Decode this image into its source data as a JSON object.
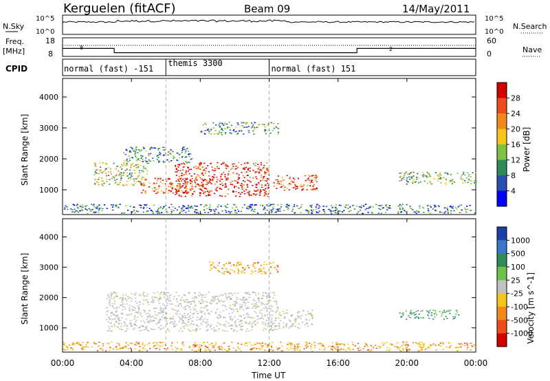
{
  "header": {
    "station": "Kerguelen (fitACF)",
    "beam": "Beam 09",
    "date": "14/May/2011"
  },
  "strip_labels": {
    "nsky": "N.Sky",
    "nsky_ticks": [
      "10^5",
      "10^0"
    ],
    "nsearch": "N.Search",
    "nsearch_ticks": [
      "10^5",
      "10^0"
    ],
    "freq": "Freq.",
    "freq_unit": "[MHz]",
    "freq_ticks": [
      "18",
      "8"
    ],
    "nave": "Nave",
    "nave_ticks": [
      "60",
      "0"
    ],
    "cpid": "CPID"
  },
  "cpid_segments": [
    {
      "label": "normal (fast) -151",
      "start_h": 0,
      "end_h": 6
    },
    {
      "label": "themis 3300",
      "start_h": 6,
      "end_h": 12
    },
    {
      "label": "normal (fast) 151",
      "start_h": 12,
      "end_h": 24
    }
  ],
  "freq_annotations": [
    "8",
    "2"
  ],
  "chart_data": [
    {
      "type": "heatmap",
      "quantity": "Power",
      "xlabel": "Time UT",
      "ylabel": "Slant Range [km]",
      "xlim_hours": [
        0,
        24
      ],
      "ylim_km": [
        200,
        4600
      ],
      "y_ticks": [
        1000,
        2000,
        3000,
        4000
      ],
      "x_tick_labels": [
        "00:00",
        "04:00",
        "08:00",
        "12:00",
        "16:00",
        "20:00",
        "00:00"
      ],
      "colorbar": {
        "title": "Power [dB]",
        "ticks": [
          "4",
          "8",
          "12",
          "16",
          "20",
          "24",
          "28"
        ],
        "range": [
          0,
          30
        ],
        "colors": [
          "#0000ff",
          "#2b4fb0",
          "#2e8b57",
          "#7fc241",
          "#f5c518",
          "#f08a1c",
          "#ef4b1c",
          "#d40000"
        ]
      },
      "regions": [
        {
          "t": [
            1.8,
            5.0
          ],
          "r": [
            1150,
            1900
          ],
          "level": 14
        },
        {
          "t": [
            4.5,
            8.5
          ],
          "r": [
            900,
            1400
          ],
          "level": 24
        },
        {
          "t": [
            6.5,
            12.0
          ],
          "r": [
            800,
            1900
          ],
          "level": 27
        },
        {
          "t": [
            12.2,
            14.8
          ],
          "r": [
            1000,
            1500
          ],
          "level": 24
        },
        {
          "t": [
            3.5,
            7.5
          ],
          "r": [
            1900,
            2400
          ],
          "level": 9
        },
        {
          "t": [
            8.0,
            12.5
          ],
          "r": [
            2800,
            3200
          ],
          "level": 10
        },
        {
          "t": [
            19.5,
            24.0
          ],
          "r": [
            1200,
            1600
          ],
          "level": 12
        },
        {
          "t": [
            0.0,
            24.0
          ],
          "r": [
            250,
            550
          ],
          "level": 8
        }
      ]
    },
    {
      "type": "heatmap",
      "quantity": "Velocity",
      "xlabel": "Time UT",
      "ylabel": "Slant Range [km]",
      "xlim_hours": [
        0,
        24
      ],
      "ylim_km": [
        200,
        4600
      ],
      "y_ticks": [
        1000,
        2000,
        3000,
        4000
      ],
      "x_tick_labels": [
        "00:00",
        "04:00",
        "08:00",
        "12:00",
        "16:00",
        "20:00",
        "00:00"
      ],
      "colorbar": {
        "title": "Velocity [m s^-1]",
        "ticks": [
          "1000",
          "500",
          "100",
          "25",
          "-25",
          "-100",
          "-500",
          "-1000"
        ],
        "colors": [
          "#1b3fa8",
          "#3a78c8",
          "#2e8b57",
          "#6cc24a",
          "#c0c0c0",
          "#f5c518",
          "#f08a1c",
          "#ef4b1c",
          "#d40000"
        ]
      },
      "regions": [
        {
          "t": [
            2.5,
            12.5
          ],
          "r": [
            900,
            2200
          ],
          "level": "ground_scatter"
        },
        {
          "t": [
            12.5,
            14.5
          ],
          "r": [
            1000,
            1600
          ],
          "level": "ground_scatter"
        },
        {
          "t": [
            8.5,
            12.5
          ],
          "r": [
            2800,
            3200
          ],
          "level": -300
        },
        {
          "t": [
            19.5,
            23.0
          ],
          "r": [
            1300,
            1600
          ],
          "level": 80
        },
        {
          "t": [
            0.0,
            24.0
          ],
          "r": [
            250,
            550
          ],
          "level": -80
        }
      ]
    }
  ]
}
